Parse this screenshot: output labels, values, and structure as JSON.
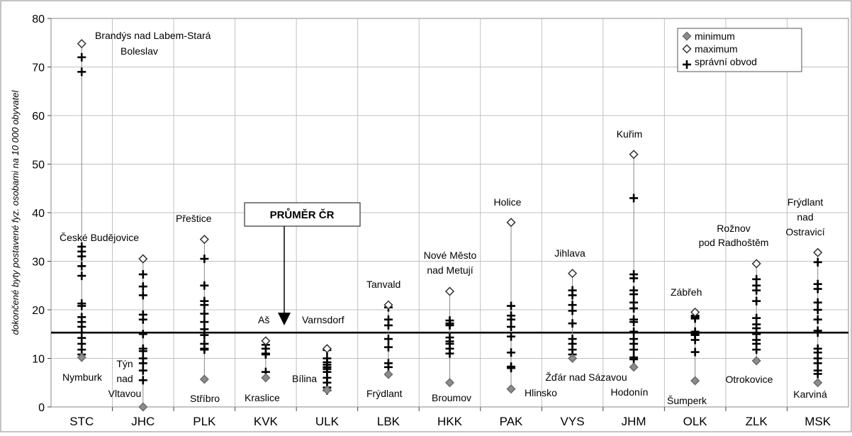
{
  "chart_data": {
    "type": "scatter",
    "ylabel": "dokončené byty postavené fyz. osobami na 10 000 obyvatel",
    "ylim": [
      0,
      80
    ],
    "yticks": [
      "0",
      "10",
      "20",
      "30",
      "40",
      "50",
      "60",
      "70",
      "80"
    ],
    "grid": true,
    "categories": [
      "STC",
      "JHC",
      "PLK",
      "KVK",
      "ULK",
      "LBK",
      "HKK",
      "PAK",
      "VYS",
      "JHM",
      "OLK",
      "ZLK",
      "MSK"
    ],
    "series": [
      {
        "name": "minimum",
        "values": [
          10.2,
          0,
          5.7,
          6.0,
          3.5,
          6.7,
          5.0,
          3.7,
          10.0,
          8.2,
          5.4,
          9.5,
          5.0
        ]
      },
      {
        "name": "maximum",
        "values": [
          74.8,
          30.5,
          34.5,
          13.6,
          12.0,
          21.0,
          23.8,
          38.0,
          27.5,
          52.0,
          19.5,
          29.5,
          31.8
        ]
      },
      {
        "name": "správní obvod",
        "values": [
          [
            72,
            69,
            33,
            32,
            31,
            29,
            27,
            21.3,
            20.8,
            18.5,
            17.5,
            16.5,
            15.3,
            14.2,
            13,
            11.8,
            10.8
          ],
          [
            27.3,
            24.8,
            23,
            19,
            18,
            15,
            12,
            11.5,
            10,
            9,
            7.5,
            5.5
          ],
          [
            30.5,
            25,
            21.8,
            21,
            19.2,
            17.5,
            16,
            14.8,
            13,
            12,
            11.8
          ],
          [
            12.8,
            12,
            11,
            10.8,
            7.2
          ],
          [
            11.7,
            10,
            9.2,
            8.7,
            8.2,
            7.8,
            7.2,
            6,
            5,
            4,
            3.4
          ],
          [
            20.5,
            18,
            16.8,
            14,
            12.3,
            9,
            8.2
          ],
          [
            17.8,
            17.2,
            16.8,
            14.3,
            13.5,
            13,
            12,
            11
          ],
          [
            20.8,
            18.8,
            18,
            16.5,
            14.5,
            11.2,
            8.3,
            8.0
          ],
          [
            24,
            23,
            21,
            19.8,
            17.2,
            14,
            13,
            11.8,
            10.8
          ],
          [
            43,
            27.3,
            26.5,
            24,
            23.2,
            21.5,
            20.3,
            18,
            17.5,
            15.5,
            14,
            13,
            11.8,
            10.2,
            9.8
          ],
          [
            18.8,
            18.5,
            18.2,
            15.5,
            15,
            14.8,
            13.8,
            11.3
          ],
          [
            26.3,
            25,
            24,
            21.8,
            18.3,
            17,
            16.2,
            15,
            13.8,
            13,
            11.8
          ],
          [
            29.8,
            25.3,
            24.3,
            21.5,
            20,
            18,
            15.7,
            15.3,
            12,
            11.2,
            10,
            9,
            7.5,
            6.8
          ]
        ]
      }
    ],
    "legend": {
      "position": "top-right",
      "entries": [
        "minimum",
        "maximum",
        "správní obvod"
      ]
    },
    "annotations": [
      "Brandýs nad Labem-Stará Boleslav",
      "Nymburk",
      "České Budějovice",
      "Týn nad Vltavou",
      "Přeštice",
      "Stříbro",
      "Aš",
      "Kraslice",
      "Varnsdorf",
      "Bílina",
      "Tanvald",
      "Frýdlant",
      "Nové Město nad Metují",
      "Broumov",
      "Holice",
      "Hlinsko",
      "Jihlava",
      "Žďár nad Sázavou",
      "Kuřim",
      "Hodonín",
      "Zábřeh",
      "Šumperk",
      "Rožnov pod Radhoštěm",
      "Otrokovice",
      "Frýdlant nad Ostravicí",
      "Karviná"
    ],
    "average": {
      "label": "PRŮMĚR ČR",
      "value": 15.3
    }
  }
}
